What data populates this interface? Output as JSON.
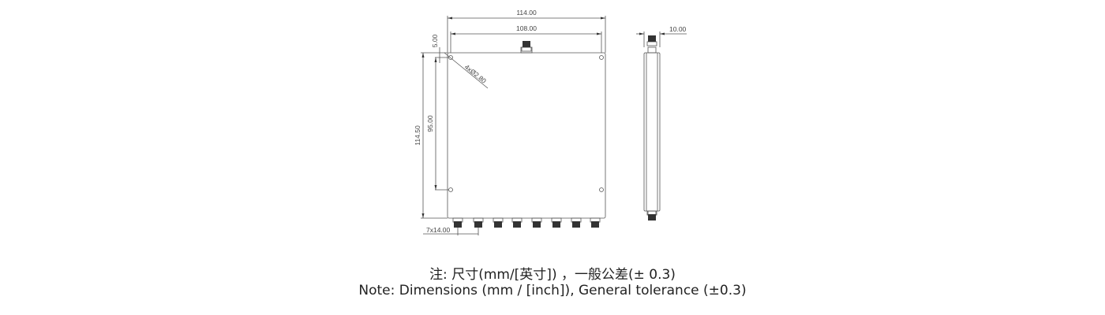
{
  "drawing": {
    "dimensions": {
      "overall_width": "114.00",
      "hole_spacing_width": "108.00",
      "thickness": "10.00",
      "hole_offset": "5.00",
      "hole_spec": "4xØ2.80",
      "overall_height": "114.50",
      "hole_spacing_height": "95.00",
      "port_pitch": "7x14.00"
    },
    "colors": {
      "line": "#555555",
      "connector": "#333333"
    }
  },
  "caption": {
    "line_cn": "注: 尺寸(mm/[英寸]) ，一般公差(± 0.3)",
    "line_en": "Note: Dimensions (mm / [inch]), General tolerance (±0.3)"
  }
}
